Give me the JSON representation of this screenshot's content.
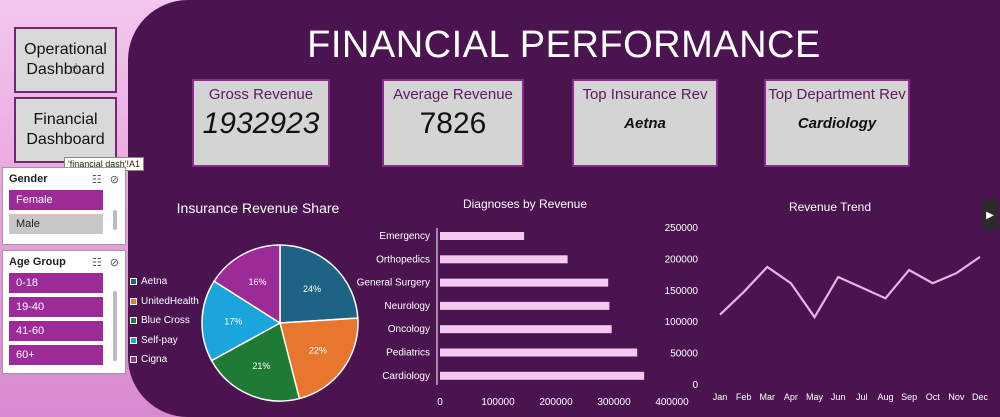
{
  "nav": {
    "operational": "Operational Dashboard",
    "financial": "Financial Dashboard"
  },
  "tooltip": "'financial dash'!A1",
  "gender_slicer": {
    "title": "Gender",
    "items": [
      {
        "label": "Female",
        "selected": true
      },
      {
        "label": "Male",
        "selected": false
      }
    ]
  },
  "age_slicer": {
    "title": "Age Group",
    "items": [
      {
        "label": "0-18"
      },
      {
        "label": "19-40"
      },
      {
        "label": "41-60"
      },
      {
        "label": "60+"
      }
    ]
  },
  "header": {
    "title": "FINANCIAL PERFORMANCE"
  },
  "cards": {
    "gross_label": "Gross Revenue",
    "gross_value": "1932923",
    "avg_label": "Average Revenue",
    "avg_value": "7826",
    "ins_label": "Top Insurance Rev",
    "ins_value": "Aetna",
    "dept_label": "Top Department Rev",
    "dept_value": "Cardiology"
  },
  "colors": {
    "panel": "#4b1450",
    "accent": "#9c2a97",
    "bar": "#f4c8f0",
    "line": "#e8b3e6"
  },
  "chart_data": [
    {
      "type": "pie",
      "title": "Insurance Revenue Share",
      "legend_position": "left",
      "slices": [
        {
          "name": "Aetna",
          "value": 24,
          "label": "24%",
          "color": "#1d6383"
        },
        {
          "name": "UnitedHealth",
          "value": 22,
          "label": "22%",
          "color": "#e8762f"
        },
        {
          "name": "Blue Cross",
          "value": 21,
          "label": "21%",
          "color": "#1e7a35"
        },
        {
          "name": "Self-pay",
          "value": 17,
          "label": "17%",
          "color": "#1aa6dc"
        },
        {
          "name": "Cigna",
          "value": 16,
          "label": "16%",
          "color": "#9c2a97"
        }
      ]
    },
    {
      "type": "bar",
      "orientation": "horizontal",
      "title": "Diagnoses by Revenue",
      "categories": [
        "Emergency",
        "Orthopedics",
        "General Surgery",
        "Neurology",
        "Oncology",
        "Pediatrics",
        "Cardiology"
      ],
      "values": [
        145000,
        220000,
        290000,
        292000,
        296000,
        340000,
        352000
      ],
      "xlim": [
        0,
        400000
      ],
      "xticks": [
        "0",
        "100000",
        "200000",
        "300000",
        "400000"
      ]
    },
    {
      "type": "line",
      "title": "Revenue Trend",
      "categories": [
        "Jan",
        "Feb",
        "Mar",
        "Apr",
        "May",
        "Jun",
        "Jul",
        "Aug",
        "Sep",
        "Oct",
        "Nov",
        "Dec"
      ],
      "values": [
        112000,
        148000,
        188000,
        162000,
        108000,
        172000,
        155000,
        138000,
        183000,
        162000,
        178000,
        204000
      ],
      "ylim": [
        0,
        250000
      ],
      "yticks": [
        "250000",
        "200000",
        "150000",
        "100000",
        "50000",
        "0"
      ]
    }
  ]
}
